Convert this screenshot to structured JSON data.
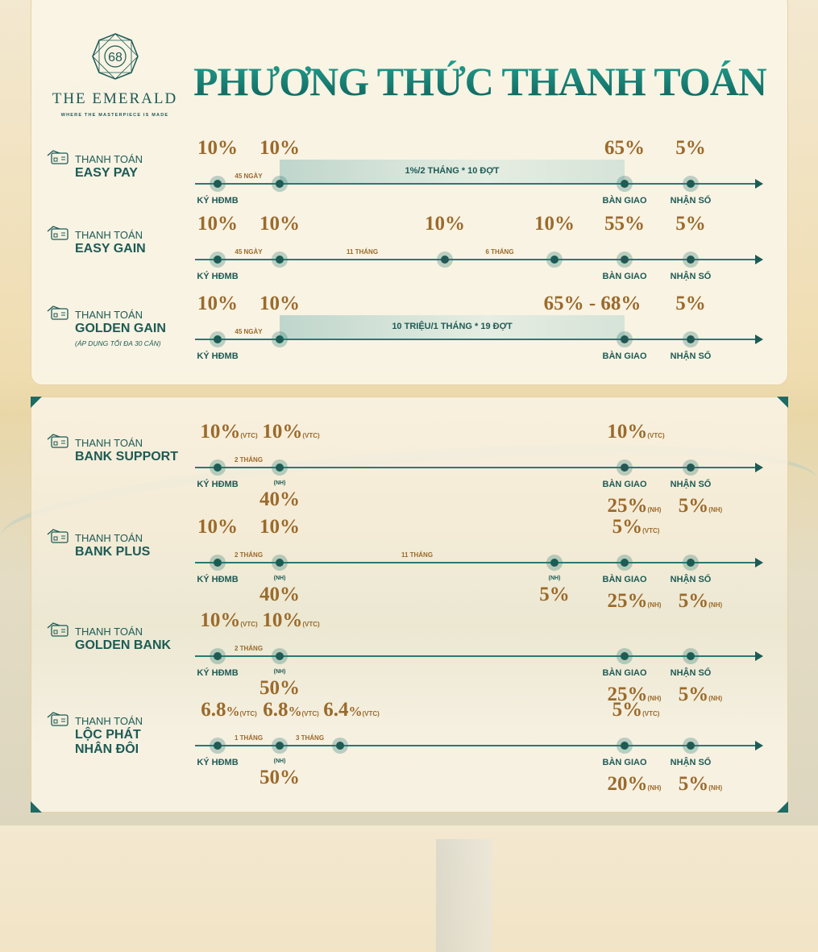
{
  "logo": {
    "number": "68",
    "brand": "THE EMERALD",
    "tagline": "WHERE THE MASTERPIECE IS MADE"
  },
  "title": "PHƯƠNG THỨC THANH TOÁN",
  "colors": {
    "teal": "#1d5b55",
    "gold": "#9b6a2b",
    "background": "#f8f1e2"
  },
  "plans": [
    {
      "prefix": "THANH TOÁN",
      "name": "EASY PAY",
      "icon": "payment-card-icon",
      "band": {
        "from": "b",
        "to": "e",
        "text": "1%/2 THÁNG * 10 ĐỢT"
      },
      "segments": [
        {
          "between": [
            "a",
            "b"
          ],
          "text": "45 NGÀY"
        }
      ],
      "milestones": [
        {
          "at": "a",
          "top": "10%",
          "below": "KÝ HĐMB"
        },
        {
          "at": "b",
          "top": "10%"
        },
        {
          "at": "e",
          "top": "65%",
          "below": "BÀN GIAO"
        },
        {
          "at": "f",
          "top": "5%",
          "below": "NHẬN SỔ"
        }
      ]
    },
    {
      "prefix": "THANH TOÁN",
      "name": "EASY GAIN",
      "icon": "payment-card-icon",
      "segments": [
        {
          "between": [
            "a",
            "b"
          ],
          "text": "45 NGÀY"
        },
        {
          "between": [
            "b",
            "c"
          ],
          "text": "11 THÁNG"
        },
        {
          "between": [
            "c",
            "d"
          ],
          "text": "6 THÁNG"
        }
      ],
      "milestones": [
        {
          "at": "a",
          "top": "10%",
          "below": "KÝ HĐMB"
        },
        {
          "at": "b",
          "top": "10%"
        },
        {
          "at": "c",
          "top": "10%"
        },
        {
          "at": "d",
          "top": "10%"
        },
        {
          "at": "e",
          "top": "55%",
          "below": "BÀN GIAO"
        },
        {
          "at": "f",
          "top": "5%",
          "below": "NHẬN SỔ"
        }
      ]
    },
    {
      "prefix": "THANH TOÁN",
      "name": "GOLDEN GAIN",
      "note": "(ÁP DỤNG TỐI ĐA 30 CĂN)",
      "icon": "payment-card-icon",
      "band": {
        "from": "b",
        "to": "e",
        "text": "10 TRIỆU/1 THÁNG * 19 ĐỢT"
      },
      "segments": [
        {
          "between": [
            "a",
            "b"
          ],
          "text": "45 NGÀY"
        }
      ],
      "milestones": [
        {
          "at": "a",
          "top": "10%",
          "below": "KÝ HĐMB"
        },
        {
          "at": "b",
          "top": "10%"
        },
        {
          "at": "e",
          "top": "65% - 68%",
          "below": "BÀN GIAO",
          "shift": -40
        },
        {
          "at": "f",
          "top": "5%",
          "below": "NHẬN SỔ"
        }
      ]
    },
    {
      "prefix": "THANH TOÁN",
      "name": "BANK SUPPORT",
      "icon": "payment-card-icon",
      "segments": [
        {
          "between": [
            "a",
            "b"
          ],
          "text": "2 THÁNG"
        }
      ],
      "milestones": [
        {
          "at": "a",
          "top": "10%",
          "topSuffix": "(VTC)",
          "below": "KÝ HĐMB"
        },
        {
          "at": "b",
          "top": "10%",
          "topSuffix": "(VTC)",
          "nh": "(NH)",
          "bottom": "40%"
        },
        {
          "at": "e",
          "top": "10%",
          "topSuffix": "(VTC)",
          "below": "BÀN GIAO",
          "bottom": "25%",
          "bottomSuffix": "(NH)"
        },
        {
          "at": "f",
          "below": "NHẬN SỔ",
          "bottom": "5%",
          "bottomSuffix": "(NH)"
        }
      ]
    },
    {
      "prefix": "THANH TOÁN",
      "name": "BANK PLUS",
      "icon": "payment-card-icon",
      "segments": [
        {
          "between": [
            "a",
            "b"
          ],
          "text": "2 THÁNG"
        },
        {
          "between": [
            "b",
            "d"
          ],
          "text": "11 THÁNG"
        }
      ],
      "milestones": [
        {
          "at": "a",
          "top": "10%",
          "below": "KÝ HĐMB"
        },
        {
          "at": "b",
          "top": "10%",
          "nh": "(NH)",
          "bottom": "40%"
        },
        {
          "at": "d",
          "nh": "(NH)",
          "bottom": "5%"
        },
        {
          "at": "e",
          "top": "5%",
          "topSuffix": "(VTC)",
          "below": "BÀN GIAO",
          "bottom": "25%",
          "bottomSuffix": "(NH)"
        },
        {
          "at": "f",
          "below": "NHẬN SỔ",
          "bottom": "5%",
          "bottomSuffix": "(NH)"
        }
      ]
    },
    {
      "prefix": "THANH TOÁN",
      "name": "GOLDEN BANK",
      "icon": "payment-card-icon",
      "segments": [
        {
          "between": [
            "a",
            "b"
          ],
          "text": "2 THÁNG"
        }
      ],
      "milestones": [
        {
          "at": "a",
          "top": "10%",
          "topSuffix": "(VTC)",
          "below": "KÝ HĐMB"
        },
        {
          "at": "b",
          "top": "10%",
          "topSuffix": "(VTC)",
          "nh": "(NH)",
          "bottom": "50%"
        },
        {
          "at": "e",
          "below": "BÀN GIAO",
          "bottom": "25%",
          "bottomSuffix": "(NH)"
        },
        {
          "at": "f",
          "below": "NHẬN SỔ",
          "bottom": "5%",
          "bottomSuffix": "(NH)"
        }
      ]
    },
    {
      "prefix": "THANH TOÁN",
      "name": "LỘC PHÁT\nNHÂN ĐÔI",
      "icon": "payment-card-icon",
      "segments": [
        {
          "between": [
            "a",
            "b"
          ],
          "text": "1 THÁNG"
        },
        {
          "between": [
            "b",
            "c2"
          ],
          "text": "3 THÁNG"
        }
      ],
      "milestones": [
        {
          "at": "a",
          "top": "6.8",
          "topUnit": "%",
          "topSuffix": "(VTC)",
          "below": "KÝ HĐMB"
        },
        {
          "at": "b",
          "top": "6.8",
          "topUnit": "%",
          "topSuffix": "(VTC)",
          "nh": "(NH)",
          "bottom": "50%"
        },
        {
          "at": "c2",
          "top": "6.4",
          "topUnit": "%",
          "topSuffix": "(VTC)"
        },
        {
          "at": "e",
          "top": "5%",
          "topSuffix": "(VTC)",
          "below": "BÀN GIAO",
          "bottom": "20%",
          "bottomSuffix": "(NH)"
        },
        {
          "at": "f",
          "below": "NHẬN SỔ",
          "bottom": "5%",
          "bottomSuffix": "(NH)"
        }
      ]
    }
  ]
}
